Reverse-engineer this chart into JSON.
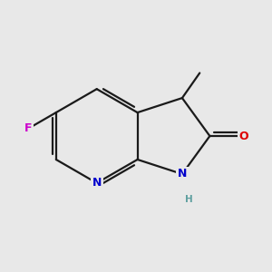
{
  "background_color": "#e8e8e8",
  "bond_color": "#1a1a1a",
  "bond_width": 1.6,
  "figsize": [
    3.0,
    3.0
  ],
  "dpi": 100,
  "atom_colors": {
    "N": "#0000cc",
    "O": "#dd0000",
    "F": "#cc00cc",
    "H": "#5fa0a0",
    "C": "#1a1a1a"
  }
}
